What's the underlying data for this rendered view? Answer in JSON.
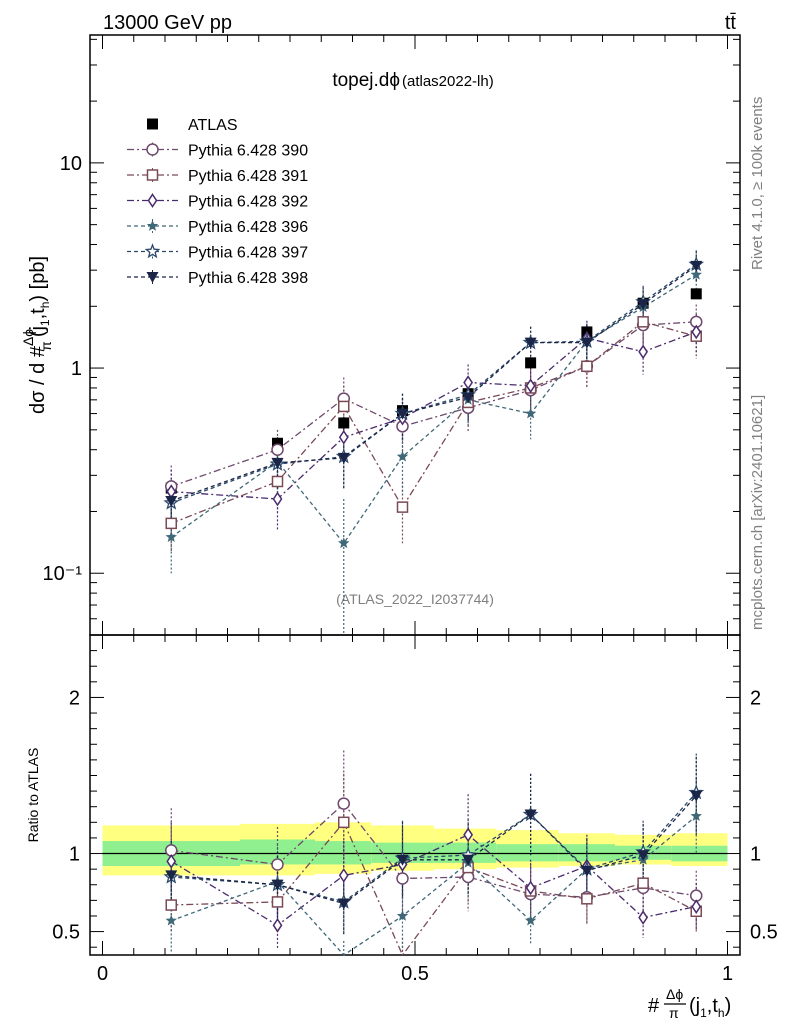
{
  "header": {
    "energy_label": "13000 GeV pp",
    "process_label": "tt̄"
  },
  "side_labels": {
    "rivet": "Rivet 4.1.0, ≥ 100k events",
    "mcplots": "mcplots.cern.ch [arXiv:2401.10621]"
  },
  "chart_data": {
    "type": "scatter",
    "title": "topej.dϕ",
    "subtitle": "(atlas2022-lh)",
    "watermark": "(ATLAS_2022_I2037744)",
    "ylabel_main": "dσ / d #Δϕ/π(j1,th) [pb]",
    "ylabel_ratio": "Ratio to ATLAS",
    "xlabel": "#Δϕ/π(j1,th)",
    "x_range": [
      -0.02,
      1.02
    ],
    "y_main_range": [
      0.05,
      42
    ],
    "y_main_scale": "log",
    "y_ratio_range": [
      0.35,
      2.4
    ],
    "x_ticks": [
      0,
      0.5,
      1
    ],
    "x_tick_labels": [
      "0",
      "0.5",
      "1"
    ],
    "y_main_ticks": [
      0.1,
      1,
      10
    ],
    "y_main_tick_labels": [
      "10⁻¹",
      "1",
      "10"
    ],
    "y_ratio_ticks": [
      0.5,
      1,
      2
    ],
    "y_ratio_tick_labels": [
      "0.5",
      "1",
      "2"
    ],
    "legend_position": "top-left",
    "x": [
      0.11,
      0.28,
      0.386,
      0.48,
      0.585,
      0.685,
      0.775,
      0.865,
      0.95
    ],
    "bin_edges": [
      0,
      0.22,
      0.34,
      0.43,
      0.53,
      0.63,
      0.73,
      0.82,
      0.91,
      1.0
    ],
    "ratio_band_yellow": [
      [
        0.86,
        1.18
      ],
      [
        0.86,
        1.19
      ],
      [
        0.87,
        1.2
      ],
      [
        0.89,
        1.18
      ],
      [
        0.9,
        1.16
      ],
      [
        0.91,
        1.15
      ],
      [
        0.92,
        1.13
      ],
      [
        0.93,
        1.12
      ],
      [
        0.92,
        1.13
      ]
    ],
    "ratio_band_green": [
      [
        0.92,
        1.08
      ],
      [
        0.93,
        1.09
      ],
      [
        0.93,
        1.08
      ],
      [
        0.94,
        1.07
      ],
      [
        0.94,
        1.07
      ],
      [
        0.95,
        1.06
      ],
      [
        0.95,
        1.06
      ],
      [
        0.96,
        1.05
      ],
      [
        0.95,
        1.05
      ]
    ],
    "series": [
      {
        "name": "ATLAS",
        "marker": "square-filled",
        "color": "#000000",
        "style": "none",
        "values": [
          0.26,
          0.43,
          0.54,
          0.62,
          0.75,
          1.06,
          1.5,
          2.07,
          2.3
        ]
      },
      {
        "name": "Pythia 6.428 390",
        "marker": "circle-open",
        "color": "#6d4a6d",
        "style": "dashdot",
        "values": [
          0.265,
          0.4,
          0.71,
          0.52,
          0.64,
          0.78,
          1.02,
          1.62,
          1.68
        ],
        "errors": [
          0.07,
          0.1,
          0.19,
          0.14,
          0.15,
          0.18,
          0.22,
          0.35,
          0.36
        ],
        "ratio": [
          1.02,
          0.93,
          1.32,
          0.84,
          0.85,
          0.74,
          0.72,
          0.78,
          0.73
        ],
        "ratio_errors": [
          0.27,
          0.24,
          0.34,
          0.22,
          0.22,
          0.18,
          0.16,
          0.17,
          0.16
        ]
      },
      {
        "name": "Pythia 6.428 391",
        "marker": "square-open",
        "color": "#7a4a55",
        "style": "dashdot",
        "values": [
          0.175,
          0.28,
          0.65,
          0.21,
          0.68,
          0.8,
          1.02,
          1.68,
          1.43
        ],
        "errors": [
          0.05,
          0.08,
          0.17,
          0.07,
          0.16,
          0.19,
          0.22,
          0.36,
          0.32
        ],
        "ratio": [
          0.67,
          0.69,
          1.2,
          0.34,
          0.91,
          0.76,
          0.71,
          0.81,
          0.63
        ],
        "ratio_errors": [
          0.18,
          0.18,
          0.31,
          0.12,
          0.23,
          0.18,
          0.16,
          0.17,
          0.14
        ]
      },
      {
        "name": "Pythia 6.428 392",
        "marker": "diamond-open",
        "color": "#4a2a6d",
        "style": "dashdot",
        "values": [
          0.25,
          0.23,
          0.46,
          0.57,
          0.85,
          0.82,
          1.4,
          1.2,
          1.5
        ],
        "errors": [
          0.07,
          0.07,
          0.12,
          0.14,
          0.19,
          0.19,
          0.3,
          0.27,
          0.33
        ],
        "ratio": [
          0.95,
          0.54,
          0.86,
          0.93,
          1.12,
          0.78,
          0.92,
          0.59,
          0.66
        ],
        "ratio_errors": [
          0.25,
          0.15,
          0.22,
          0.23,
          0.26,
          0.18,
          0.2,
          0.13,
          0.15
        ]
      },
      {
        "name": "Pythia 6.428 396",
        "marker": "star-filled",
        "color": "#3f6878",
        "style": "dashed",
        "values": [
          0.15,
          0.35,
          0.14,
          0.37,
          0.7,
          0.6,
          1.35,
          1.98,
          2.85
        ],
        "errors": [
          0.05,
          0.1,
          0.09,
          0.13,
          0.17,
          0.15,
          0.3,
          0.4,
          0.52
        ],
        "ratio": [
          0.57,
          0.82,
          0.26,
          0.6,
          0.94,
          0.57,
          0.9,
          0.96,
          1.24
        ],
        "ratio_errors": [
          0.2,
          0.24,
          0.18,
          0.22,
          0.23,
          0.15,
          0.2,
          0.2,
          0.24
        ]
      },
      {
        "name": "Pythia 6.428 397",
        "marker": "star-open",
        "color": "#2b4a6b",
        "style": "dashed",
        "values": [
          0.22,
          0.34,
          0.37,
          0.6,
          0.74,
          1.33,
          1.35,
          2.1,
          3.2
        ],
        "errors": [
          0.06,
          0.09,
          0.11,
          0.15,
          0.17,
          0.26,
          0.29,
          0.42,
          0.55
        ],
        "ratio": [
          0.85,
          0.8,
          0.69,
          0.97,
          0.99,
          1.25,
          0.9,
          1.01,
          1.39
        ],
        "ratio_errors": [
          0.22,
          0.21,
          0.2,
          0.24,
          0.23,
          0.26,
          0.2,
          0.2,
          0.25
        ]
      },
      {
        "name": "Pythia 6.428 398",
        "marker": "triangle-down-filled",
        "color": "#1b2547",
        "style": "dashed",
        "values": [
          0.225,
          0.345,
          0.365,
          0.6,
          0.72,
          1.33,
          1.33,
          2.05,
          3.15
        ],
        "errors": [
          0.06,
          0.09,
          0.11,
          0.15,
          0.17,
          0.26,
          0.29,
          0.42,
          0.55
        ],
        "ratio": [
          0.86,
          0.8,
          0.68,
          0.96,
          0.96,
          1.25,
          0.89,
          0.99,
          1.37
        ],
        "ratio_errors": [
          0.22,
          0.21,
          0.2,
          0.24,
          0.23,
          0.26,
          0.2,
          0.2,
          0.25
        ]
      }
    ],
    "atlas_errors": [
      0.02,
      0.03,
      0.04,
      0.04,
      0.05,
      0.07,
      0.09,
      0.12,
      0.13
    ]
  }
}
